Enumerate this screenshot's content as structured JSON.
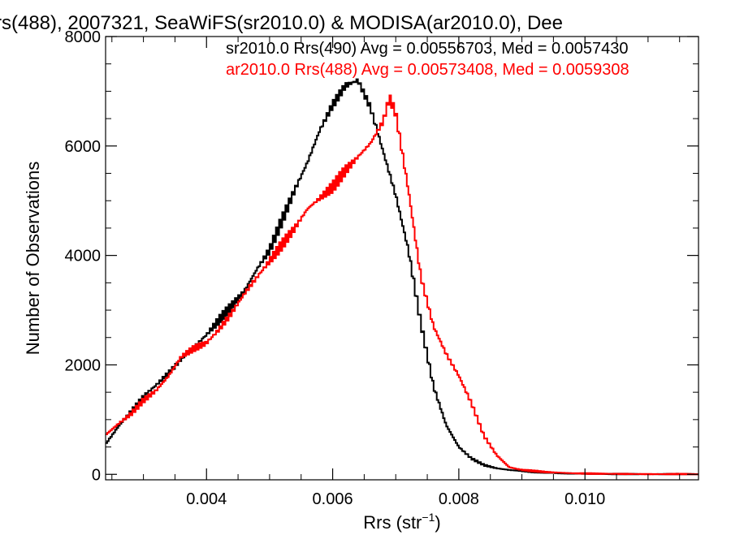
{
  "chart_data": {
    "type": "line",
    "title": "rs(488), 2007321, SeaWiFS(sr2010.0) & MODISA(ar2010.0), Dee",
    "xlabel": "Rrs (str",
    "xlabel_sup": "−1",
    "xlabel_close": ")",
    "ylabel": "Number of Observations",
    "xlim": [
      0.0024,
      0.0118
    ],
    "ylim": [
      -100,
      8000
    ],
    "x_ticks": [
      0.004,
      0.006,
      0.008,
      0.01
    ],
    "x_tick_labels": [
      "0.004",
      "0.006",
      "0.008",
      "0.010"
    ],
    "y_ticks": [
      0,
      2000,
      4000,
      6000,
      8000
    ],
    "y_tick_labels": [
      "0",
      "2000",
      "4000",
      "6000",
      "8000"
    ],
    "grid": false,
    "legend_position": "top-right",
    "series": [
      {
        "name": "sr2010.0 Rrs(490) Avg = 0.00556703, Med = 0.0057430",
        "color": "#000000",
        "style": "step",
        "points": [
          [
            0.0024,
            550
          ],
          [
            0.0026,
            870
          ],
          [
            0.0028,
            1150
          ],
          [
            0.003,
            1420
          ],
          [
            0.0032,
            1630
          ],
          [
            0.0034,
            1850
          ],
          [
            0.0036,
            2100
          ],
          [
            0.0038,
            2320
          ],
          [
            0.004,
            2550
          ],
          [
            0.0042,
            2820
          ],
          [
            0.0044,
            3070
          ],
          [
            0.0046,
            3350
          ],
          [
            0.0048,
            3750
          ],
          [
            0.005,
            4100
          ],
          [
            0.0052,
            4650
          ],
          [
            0.0054,
            5200
          ],
          [
            0.0056,
            5700
          ],
          [
            0.0058,
            6300
          ],
          [
            0.006,
            6750
          ],
          [
            0.0062,
            7100
          ],
          [
            0.0064,
            7200
          ],
          [
            0.0066,
            6700
          ],
          [
            0.0068,
            5900
          ],
          [
            0.007,
            5100
          ],
          [
            0.0072,
            4100
          ],
          [
            0.0074,
            2750
          ],
          [
            0.0076,
            1600
          ],
          [
            0.0078,
            900
          ],
          [
            0.008,
            500
          ],
          [
            0.0082,
            290
          ],
          [
            0.0084,
            170
          ],
          [
            0.0086,
            110
          ],
          [
            0.0088,
            80
          ],
          [
            0.009,
            60
          ],
          [
            0.0092,
            40
          ],
          [
            0.0094,
            30
          ],
          [
            0.0096,
            20
          ],
          [
            0.0098,
            15
          ],
          [
            0.01,
            10
          ],
          [
            0.0105,
            5
          ],
          [
            0.011,
            3
          ],
          [
            0.0118,
            2
          ]
        ]
      },
      {
        "name": "ar2010.0 Rrs(488) Avg = 0.00573408, Med = 0.0059308",
        "color": "#ff0000",
        "style": "step",
        "points": [
          [
            0.0024,
            720
          ],
          [
            0.0026,
            920
          ],
          [
            0.0028,
            1100
          ],
          [
            0.003,
            1350
          ],
          [
            0.0032,
            1530
          ],
          [
            0.0034,
            1800
          ],
          [
            0.0036,
            2150
          ],
          [
            0.0038,
            2300
          ],
          [
            0.004,
            2400
          ],
          [
            0.0042,
            2650
          ],
          [
            0.0044,
            2950
          ],
          [
            0.0046,
            3300
          ],
          [
            0.0048,
            3600
          ],
          [
            0.005,
            3900
          ],
          [
            0.0052,
            4200
          ],
          [
            0.0054,
            4500
          ],
          [
            0.0056,
            4850
          ],
          [
            0.0058,
            5050
          ],
          [
            0.006,
            5250
          ],
          [
            0.0062,
            5550
          ],
          [
            0.0064,
            5800
          ],
          [
            0.0066,
            6050
          ],
          [
            0.0068,
            6450
          ],
          [
            0.0069,
            6880
          ],
          [
            0.007,
            6600
          ],
          [
            0.0072,
            5200
          ],
          [
            0.0074,
            3600
          ],
          [
            0.0076,
            2700
          ],
          [
            0.0078,
            2200
          ],
          [
            0.008,
            1800
          ],
          [
            0.0082,
            1300
          ],
          [
            0.0084,
            700
          ],
          [
            0.0086,
            350
          ],
          [
            0.0088,
            130
          ],
          [
            0.009,
            80
          ],
          [
            0.0092,
            60
          ],
          [
            0.0094,
            40
          ],
          [
            0.0096,
            30
          ],
          [
            0.0098,
            20
          ],
          [
            0.01,
            15
          ],
          [
            0.0105,
            8
          ],
          [
            0.011,
            4
          ],
          [
            0.0118,
            2
          ]
        ]
      }
    ]
  }
}
